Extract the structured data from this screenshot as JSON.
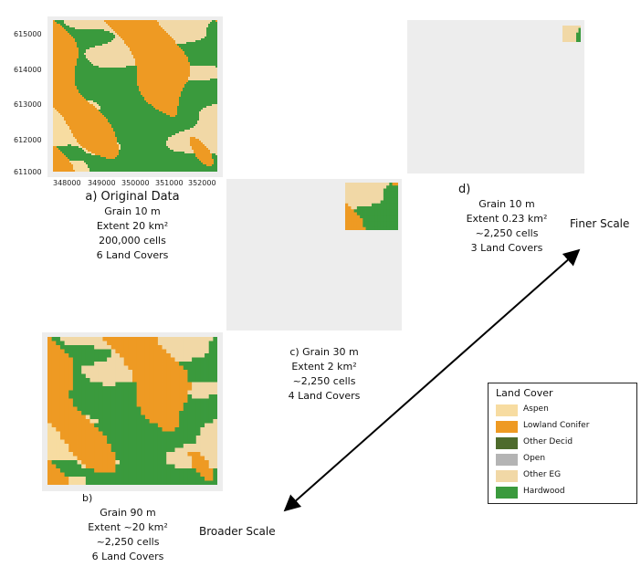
{
  "colors": {
    "aspen": "#f7dca1",
    "lowland_conifer": "#ee9a23",
    "other_decid": "#4e6b2c",
    "open": "#b4b4b4",
    "other_eg": "#f1d8a6",
    "hardwood": "#3a9a3d",
    "pad": "#ededed"
  },
  "panel_a": {
    "y_ticks": [
      "615000",
      "614000",
      "613000",
      "612000",
      "611000"
    ],
    "x_ticks": [
      "348000",
      "349000",
      "350000",
      "351000",
      "352000"
    ],
    "caption_lines": [
      "a) Original Data",
      "Grain 10 m",
      "Extent 20 km²",
      "200,000 cells",
      "6 Land Covers"
    ]
  },
  "panel_b": {
    "caption_lines": [
      "b)",
      "Grain 90 m",
      "Extent ~20 km²",
      "~2,250 cells",
      "6 Land Covers"
    ]
  },
  "panel_c": {
    "caption_lines": [
      "c)  Grain 30 m",
      "Extent 2 km²",
      "~2,250 cells",
      "4 Land Covers"
    ]
  },
  "panel_d": {
    "caption_lines": [
      "d)",
      "Grain 10 m",
      "Extent 0.23 km²",
      "~2,250 cells",
      "3 Land Covers"
    ]
  },
  "scale_axis": {
    "finer_label": "Finer Scale",
    "broader_label": "Broader Scale"
  },
  "legend": {
    "title": "Land Cover",
    "items": [
      {
        "label": "Aspen",
        "color": "#f7dca1"
      },
      {
        "label": "Lowland Conifer",
        "color": "#ee9a23"
      },
      {
        "label": "Other Decid",
        "color": "#4e6b2c"
      },
      {
        "label": "Open",
        "color": "#b4b4b4"
      },
      {
        "label": "Other EG",
        "color": "#f1d8a6"
      },
      {
        "label": "Hardwood",
        "color": "#3a9a3d"
      }
    ]
  }
}
